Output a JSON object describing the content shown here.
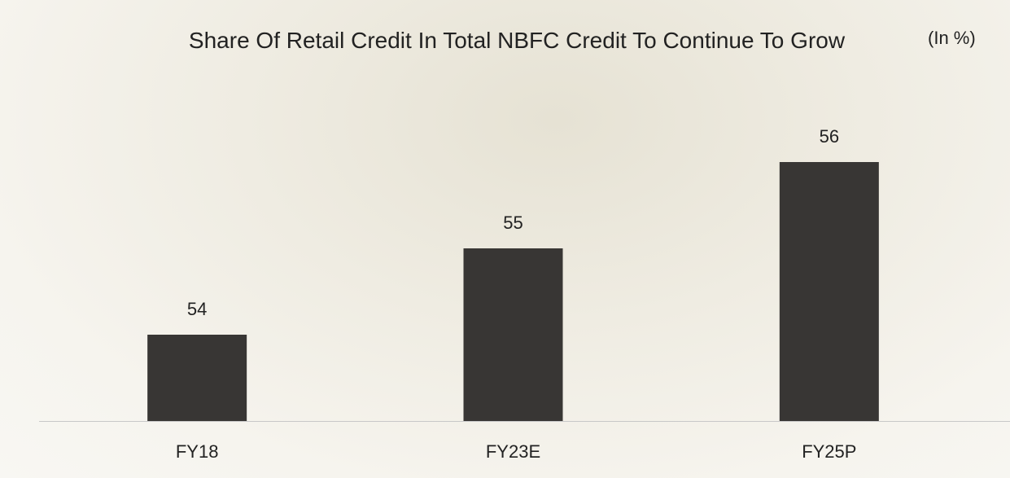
{
  "chart_data": {
    "type": "bar",
    "title": "Share Of Retail Credit In Total NBFC Credit To Continue To Grow",
    "annotation": "(In %)",
    "categories": [
      "FY18",
      "FY23E",
      "FY25P"
    ],
    "values": [
      54,
      55,
      56
    ],
    "color": "#383634",
    "ylim": [
      53,
      57
    ]
  }
}
